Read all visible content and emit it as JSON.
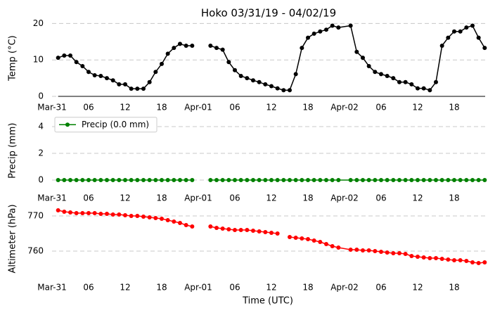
{
  "chart_data": [
    {
      "type": "line",
      "title": "Hoko 03/31/19 - 04/02/19",
      "ylabel": "Temp (°C)",
      "x": [
        1,
        2,
        3,
        4,
        5,
        6,
        7,
        8,
        9,
        10,
        11,
        12,
        13,
        14,
        15,
        16,
        17,
        18,
        19,
        20,
        21,
        22,
        23,
        24,
        25,
        26,
        27,
        28,
        29,
        30,
        31,
        32,
        33,
        34,
        35,
        36,
        37,
        38,
        39,
        40,
        41,
        42,
        43,
        44,
        45,
        46,
        47,
        49,
        50,
        51,
        52,
        53,
        54,
        55,
        56,
        57,
        58,
        59,
        60,
        61,
        62,
        63,
        64,
        65,
        66,
        67,
        68,
        69,
        70,
        71
      ],
      "xlim": [
        0,
        72
      ],
      "xticks": [
        {
          "value": 0,
          "label": "Mar-31"
        },
        {
          "value": 6,
          "label": "06"
        },
        {
          "value": 12,
          "label": "12"
        },
        {
          "value": 18,
          "label": "18"
        },
        {
          "value": 24,
          "label": "Apr-01"
        },
        {
          "value": 30,
          "label": "06"
        },
        {
          "value": 36,
          "label": "12"
        },
        {
          "value": 42,
          "label": "18"
        },
        {
          "value": 48,
          "label": "Apr-02"
        },
        {
          "value": 54,
          "label": "06"
        },
        {
          "value": 60,
          "label": "12"
        },
        {
          "value": 66,
          "label": "18"
        }
      ],
      "ylim": [
        0,
        21
      ],
      "yticks": [
        0,
        10,
        20
      ],
      "grid": true,
      "series": [
        {
          "color": "#000000",
          "values": [
            10.6,
            11.2,
            11.2,
            9.4,
            8.3,
            6.7,
            5.8,
            5.6,
            5.0,
            4.4,
            3.3,
            3.3,
            2.1,
            2.1,
            2.1,
            3.9,
            6.7,
            8.9,
            11.7,
            13.3,
            14.4,
            13.9,
            13.9,
            null,
            null,
            13.9,
            13.3,
            12.8,
            9.4,
            7.2,
            5.6,
            5.0,
            4.4,
            3.9,
            3.3,
            2.8,
            2.2,
            1.7,
            1.7,
            6.1,
            13.3,
            16.1,
            17.2,
            17.8,
            18.3,
            19.4,
            18.9,
            19.4,
            12.2,
            10.6,
            8.3,
            6.7,
            6.1,
            5.6,
            5.0,
            3.9,
            3.9,
            3.3,
            2.2,
            2.2,
            1.7,
            3.9,
            13.9,
            16.1,
            17.8,
            17.8,
            18.9,
            19.4,
            16.1,
            13.3
          ]
        }
      ]
    },
    {
      "type": "line",
      "ylabel": "Precip (mm)",
      "x": [
        1,
        2,
        3,
        4,
        5,
        6,
        7,
        8,
        9,
        10,
        11,
        12,
        13,
        14,
        15,
        16,
        17,
        18,
        19,
        20,
        21,
        22,
        23,
        24,
        25,
        26,
        27,
        28,
        29,
        30,
        31,
        32,
        33,
        34,
        35,
        36,
        37,
        38,
        39,
        40,
        41,
        42,
        43,
        44,
        45,
        46,
        47,
        49,
        50,
        51,
        52,
        53,
        54,
        55,
        56,
        57,
        58,
        59,
        60,
        61,
        62,
        63,
        64,
        65,
        66,
        67,
        68,
        69,
        70,
        71
      ],
      "xlim": [
        0,
        72
      ],
      "xticks": [
        {
          "value": 0,
          "label": "Mar-31"
        },
        {
          "value": 6,
          "label": "06"
        },
        {
          "value": 12,
          "label": "12"
        },
        {
          "value": 18,
          "label": "18"
        },
        {
          "value": 24,
          "label": "Apr-01"
        },
        {
          "value": 30,
          "label": "06"
        },
        {
          "value": 36,
          "label": "12"
        },
        {
          "value": 42,
          "label": "18"
        },
        {
          "value": 48,
          "label": "Apr-02"
        },
        {
          "value": 54,
          "label": "06"
        },
        {
          "value": 60,
          "label": "12"
        },
        {
          "value": 66,
          "label": "18"
        }
      ],
      "ylim": [
        -0.3,
        4.7
      ],
      "yticks": [
        0,
        2,
        4
      ],
      "grid": true,
      "legend": "upper left",
      "series": [
        {
          "name": "Precip (0.0 mm)",
          "color": "#008000",
          "values": [
            0,
            0,
            0,
            0,
            0,
            0,
            0,
            0,
            0,
            0,
            0,
            0,
            0,
            0,
            0,
            0,
            0,
            0,
            0,
            0,
            0,
            0,
            0,
            null,
            null,
            0,
            0,
            0,
            0,
            0,
            0,
            0,
            0,
            0,
            0,
            0,
            0,
            0,
            0,
            0,
            0,
            0,
            0,
            0,
            0,
            0,
            0,
            0,
            0,
            0,
            0,
            0,
            0,
            0,
            0,
            0,
            0,
            0,
            0,
            0,
            0,
            0,
            0,
            0,
            0,
            0,
            0,
            0,
            0,
            0
          ]
        }
      ]
    },
    {
      "type": "line",
      "ylabel": "Altimeter (hPa)",
      "xlabel": "Time (UTC)",
      "x": [
        1,
        2,
        3,
        4,
        5,
        6,
        7,
        8,
        9,
        10,
        11,
        12,
        13,
        14,
        15,
        16,
        17,
        18,
        19,
        20,
        21,
        22,
        23,
        24,
        25,
        26,
        27,
        28,
        29,
        30,
        31,
        32,
        33,
        34,
        35,
        36,
        37,
        38,
        39,
        40,
        41,
        42,
        43,
        44,
        45,
        46,
        47,
        49,
        50,
        51,
        52,
        53,
        54,
        55,
        56,
        57,
        58,
        59,
        60,
        61,
        62,
        63,
        64,
        65,
        66,
        67,
        68,
        69,
        70,
        71
      ],
      "xlim": [
        0,
        72
      ],
      "xticks": [
        {
          "value": 0,
          "label": "Mar-31"
        },
        {
          "value": 6,
          "label": "06"
        },
        {
          "value": 12,
          "label": "12"
        },
        {
          "value": 18,
          "label": "18"
        },
        {
          "value": 24,
          "label": "Apr-01"
        },
        {
          "value": 30,
          "label": "06"
        },
        {
          "value": 36,
          "label": "12"
        },
        {
          "value": 42,
          "label": "18"
        },
        {
          "value": 48,
          "label": "Apr-02"
        },
        {
          "value": 54,
          "label": "06"
        },
        {
          "value": 60,
          "label": "12"
        },
        {
          "value": 66,
          "label": "18"
        }
      ],
      "ylim": [
        755,
        772
      ],
      "yticks": [
        760,
        770
      ],
      "grid": true,
      "series": [
        {
          "color": "#ff0000",
          "values": [
            771.6,
            771.2,
            771.0,
            770.8,
            770.8,
            770.8,
            770.8,
            770.6,
            770.6,
            770.4,
            770.4,
            770.2,
            770.0,
            770.0,
            769.8,
            769.6,
            769.4,
            769.2,
            768.8,
            768.4,
            768.0,
            767.4,
            767.0,
            null,
            null,
            767.0,
            766.6,
            766.4,
            766.2,
            766.0,
            766.0,
            766.0,
            765.8,
            765.6,
            765.4,
            765.2,
            765.0,
            null,
            764.0,
            763.8,
            763.6,
            763.4,
            763.0,
            762.6,
            762.0,
            761.4,
            761.0,
            760.4,
            760.4,
            760.2,
            760.2,
            760.0,
            759.8,
            759.6,
            759.4,
            759.4,
            759.2,
            758.6,
            758.4,
            758.2,
            758.0,
            758.0,
            757.8,
            757.6,
            757.4,
            757.4,
            757.2,
            756.8,
            756.6,
            756.8
          ]
        }
      ]
    }
  ]
}
